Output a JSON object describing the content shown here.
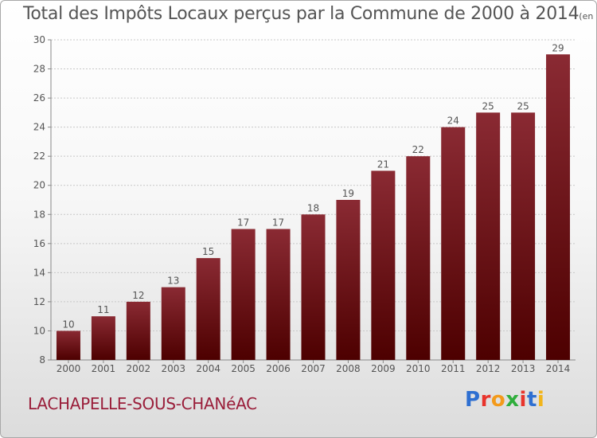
{
  "page": {
    "title": "Total des Impôts Locaux perçus par la Commune de 2000 à 2014",
    "unit": "(en milliers d'€)",
    "commune": "LACHAPELLE-SOUS-CHANéAC",
    "logo": {
      "letters": [
        "P",
        "r",
        "o",
        "x",
        "i",
        "t",
        "i"
      ],
      "colors": [
        "#2e6fd1",
        "#e8342c",
        "#f39a1b",
        "#2fae3c",
        "#e8342c",
        "#2e6fd1",
        "#f2b51b"
      ]
    }
  },
  "chart_data": {
    "type": "bar",
    "title": "Total des Impôts Locaux perçus par la Commune de 2000 à 2014",
    "unit": "(en milliers d'€)",
    "categories": [
      "2000",
      "2001",
      "2002",
      "2003",
      "2004",
      "2005",
      "2006",
      "2007",
      "2008",
      "2009",
      "2010",
      "2011",
      "2012",
      "2013",
      "2014"
    ],
    "values": [
      10,
      11,
      12,
      13,
      15,
      17,
      17,
      18,
      19,
      21,
      22,
      24,
      25,
      25,
      29
    ],
    "ylim": [
      8,
      30
    ],
    "yticks": [
      8,
      10,
      12,
      14,
      16,
      18,
      20,
      22,
      24,
      26,
      28,
      30
    ],
    "grid": "horizontal-dashed",
    "colors": {
      "bar_top": "#8a2a33",
      "bar_bottom": "#4d0000",
      "text": "#555555"
    }
  }
}
